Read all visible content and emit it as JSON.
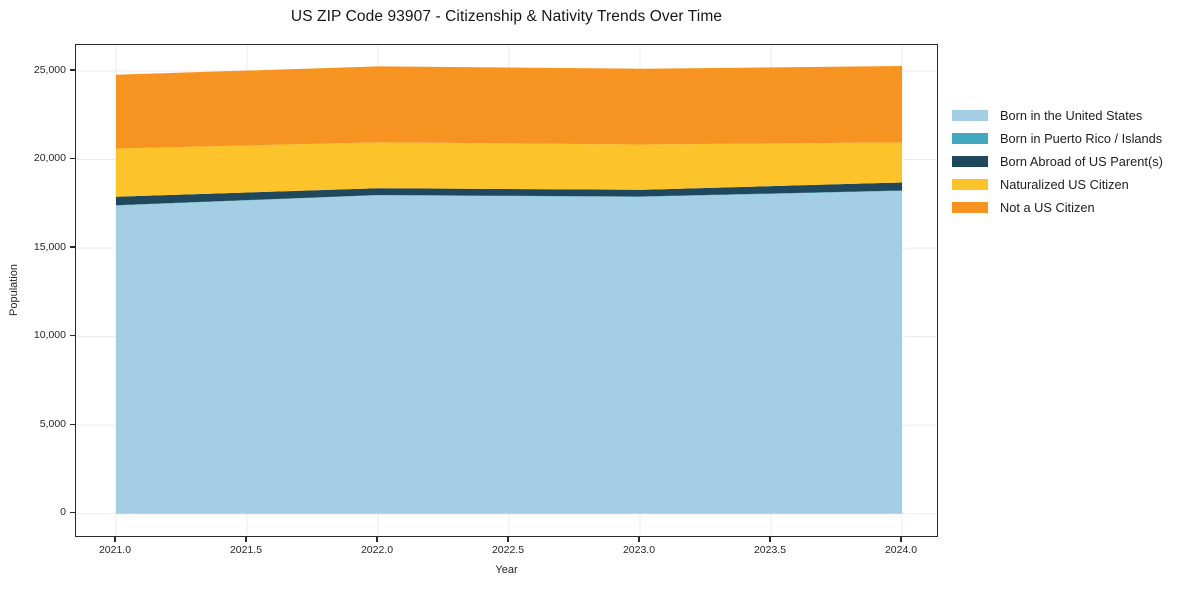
{
  "page": {
    "background": "#ffffff"
  },
  "chart_data": {
    "type": "area",
    "stacked": true,
    "title": "US ZIP Code 93907 - Citizenship & Nativity Trends Over Time",
    "xlabel": "Year",
    "ylabel": "Population",
    "x": [
      2021,
      2022,
      2023,
      2024
    ],
    "series": [
      {
        "name": "Born in the United States",
        "color": "#a3cee3",
        "values": [
          17400,
          17980,
          17890,
          18230
        ]
      },
      {
        "name": "Born in Puerto Rico / Islands",
        "color": "#41a8c0",
        "values": [
          20,
          20,
          20,
          25
        ]
      },
      {
        "name": "Born Abroad of US Parent(s)",
        "color": "#20485c",
        "values": [
          480,
          380,
          380,
          450
        ]
      },
      {
        "name": "Naturalized US Citizen",
        "color": "#fcc32b",
        "values": [
          2725,
          2590,
          2560,
          2265
        ]
      },
      {
        "name": "Not a US Citizen",
        "color": "#f79421",
        "values": [
          4165,
          4290,
          4280,
          4310
        ]
      }
    ],
    "totals": [
      24790,
      25260,
      25130,
      25280
    ],
    "x_ticks": [
      "2021.0",
      "2021.5",
      "2022.0",
      "2022.5",
      "2023.0",
      "2023.5",
      "2024.0"
    ],
    "x_tick_values": [
      2021,
      2021.5,
      2022,
      2022.5,
      2023,
      2023.5,
      2024
    ],
    "y_ticks": [
      "0",
      "5,000",
      "10,000",
      "15,000",
      "20,000",
      "25,000"
    ],
    "y_tick_values": [
      0,
      5000,
      10000,
      15000,
      20000,
      25000
    ],
    "xlim": [
      2020.85,
      2024.14
    ],
    "ylim": [
      -1375,
      26530
    ],
    "grid": true,
    "grid_color": "#ebebeb",
    "legend_position": "right",
    "spine_color": "#2a2a2a",
    "text_color": "#262626"
  }
}
